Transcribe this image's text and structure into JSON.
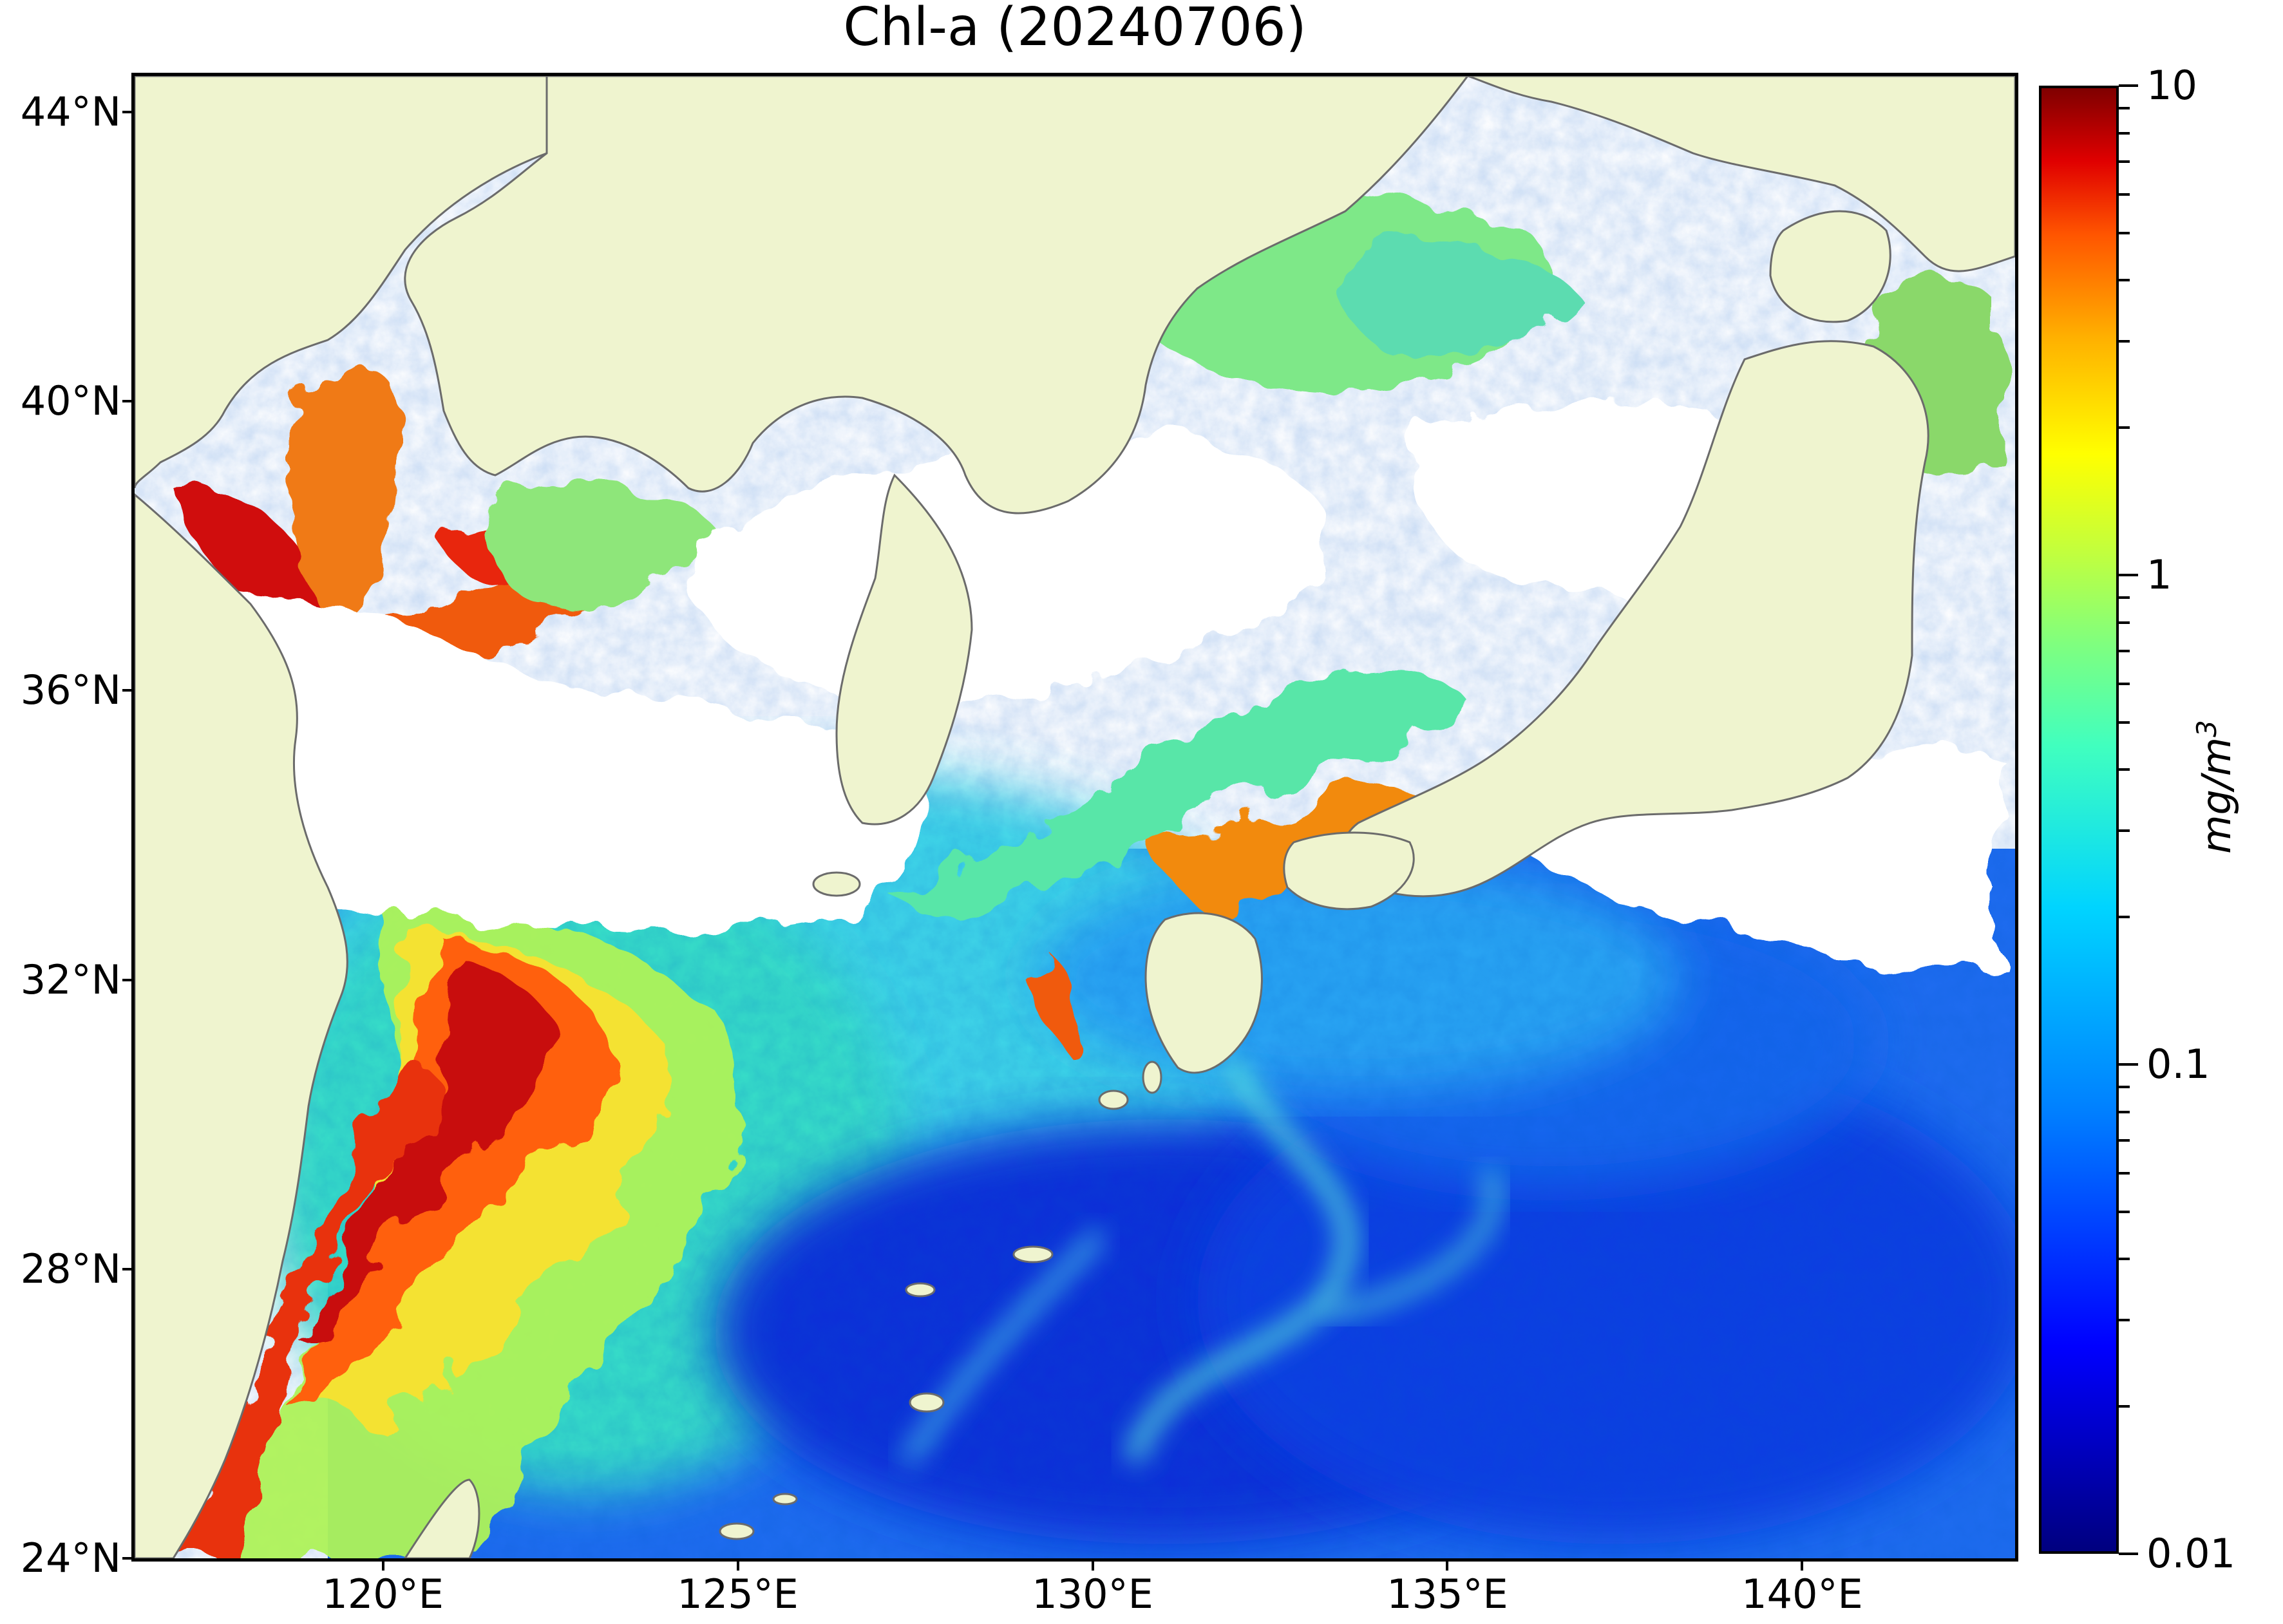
{
  "title": "Chl-a (20240706)",
  "map": {
    "extent": {
      "lon": [
        116.5,
        143.0
      ],
      "lat": [
        24.0,
        44.5
      ]
    },
    "land_color": "#eff4cf",
    "no_data_color": "#ffffff",
    "coastline_color": "#6b6b6b",
    "lat_ticks": [
      {
        "value": 44,
        "label": "44°N"
      },
      {
        "value": 40,
        "label": "40°N"
      },
      {
        "value": 36,
        "label": "36°N"
      },
      {
        "value": 32,
        "label": "32°N"
      },
      {
        "value": 28,
        "label": "28°N"
      },
      {
        "value": 24,
        "label": "24°N"
      }
    ],
    "lon_ticks": [
      {
        "value": 120,
        "label": "120°E"
      },
      {
        "value": 125,
        "label": "125°E"
      },
      {
        "value": 130,
        "label": "130°E"
      },
      {
        "value": 135,
        "label": "135°E"
      },
      {
        "value": 140,
        "label": "140°E"
      }
    ]
  },
  "chart_data": {
    "type": "heatmap",
    "title": "Chl-a (20240706)",
    "xlabel": "",
    "ylabel": "",
    "x_range": [
      116.5,
      143.0
    ],
    "y_range": [
      24.0,
      44.5
    ],
    "x_ticks": [
      "120°E",
      "125°E",
      "130°E",
      "135°E",
      "140°E"
    ],
    "y_ticks": [
      "44°N",
      "40°N",
      "36°N",
      "32°N",
      "28°N",
      "24°N"
    ],
    "colorbar": {
      "label": "mg/m",
      "label_superscript": "3",
      "scale": "log",
      "range": [
        0.01,
        10
      ],
      "ticks": [
        {
          "value": 10,
          "label": "10"
        },
        {
          "value": 1,
          "label": "1"
        },
        {
          "value": 0.1,
          "label": "0.1"
        },
        {
          "value": 0.01,
          "label": "0.01"
        }
      ],
      "colormap": "jet",
      "colors": [
        "#00007f",
        "#0000ff",
        "#007fff",
        "#00d4ff",
        "#40ffbf",
        "#7fff7f",
        "#bfff40",
        "#ffff00",
        "#ffb000",
        "#ff5500",
        "#e00000",
        "#7f0000"
      ]
    }
  }
}
